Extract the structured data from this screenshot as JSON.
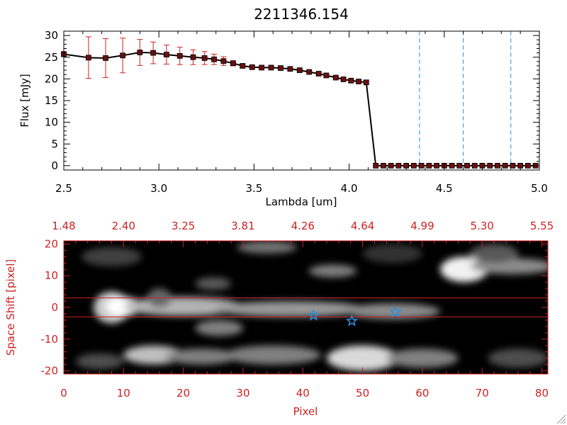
{
  "chart_data": [
    {
      "type": "line",
      "title": "2211346.154",
      "xlabel": "Lambda [um]",
      "ylabel": "Flux [mJy]",
      "xlim": [
        2.5,
        5.0
      ],
      "ylim": [
        -1,
        31
      ],
      "xticks": [
        "2.5",
        "3.0",
        "3.5",
        "4.0",
        "4.5",
        "5.0"
      ],
      "xtick_values": [
        2.5,
        3.0,
        3.5,
        4.0,
        4.5,
        5.0
      ],
      "yticks": [
        "0",
        "5",
        "10",
        "15",
        "20",
        "25",
        "30"
      ],
      "ytick_values": [
        0,
        5,
        10,
        15,
        20,
        25,
        30
      ],
      "series": [
        {
          "color": "#000000",
          "marker_color": "#6a1010",
          "errorbar_color": "#cc2222",
          "x": [
            2.5,
            2.63,
            2.72,
            2.81,
            2.9,
            2.97,
            3.04,
            3.11,
            3.18,
            3.24,
            3.29,
            3.34,
            3.39,
            3.44,
            3.49,
            3.54,
            3.59,
            3.64,
            3.69,
            3.74,
            3.79,
            3.84,
            3.88,
            3.93,
            3.97,
            4.01,
            4.05,
            4.09,
            4.14,
            4.18,
            4.22,
            4.26,
            4.3,
            4.34,
            4.38,
            4.42,
            4.46,
            4.5,
            4.54,
            4.58,
            4.62,
            4.66,
            4.7,
            4.74,
            4.78,
            4.82,
            4.86,
            4.9,
            4.94,
            4.98
          ],
          "y": [
            25.7,
            24.9,
            24.8,
            25.4,
            26.1,
            26.0,
            25.6,
            25.3,
            25.0,
            24.8,
            24.5,
            24.1,
            23.6,
            23.0,
            22.7,
            22.6,
            22.6,
            22.5,
            22.3,
            22.0,
            21.6,
            21.2,
            20.8,
            20.3,
            19.9,
            19.6,
            19.4,
            19.2,
            0.0,
            0.0,
            0.0,
            0.0,
            0.0,
            0.0,
            0.0,
            0.0,
            0.0,
            0.0,
            0.0,
            0.0,
            0.0,
            0.0,
            0.0,
            0.0,
            0.0,
            0.0,
            0.0,
            0.0,
            0.0,
            0.0
          ],
          "yerr": [
            0.6,
            4.8,
            4.5,
            4.0,
            3.0,
            2.5,
            2.2,
            2.0,
            1.7,
            1.5,
            1.2,
            1.0,
            0.6,
            0.4,
            0.3,
            0.3,
            0.3,
            0.3,
            0.3,
            0.3,
            0.3,
            0.3,
            0.3,
            0.3,
            0.3,
            0.3,
            0.3,
            0.3,
            0,
            0,
            0,
            0,
            0,
            0,
            0,
            0,
            0,
            0,
            0,
            0,
            0,
            0,
            0,
            0,
            0,
            0,
            0,
            0,
            0,
            0
          ]
        }
      ],
      "vertical_lines": {
        "x": [
          4.37,
          4.6,
          4.85
        ],
        "color": "#2a8fe0",
        "style": "dashed"
      }
    },
    {
      "type": "heatmap",
      "xlabel": "Pixel",
      "ylabel": "Space Shift [pixel]",
      "xlim": [
        0,
        81
      ],
      "ylim": [
        -21,
        21
      ],
      "xticks": [
        "0",
        "10",
        "20",
        "30",
        "40",
        "50",
        "60",
        "70",
        "80"
      ],
      "xtick_values": [
        0,
        10,
        20,
        30,
        40,
        50,
        60,
        70,
        80
      ],
      "yticks": [
        "-20",
        "-10",
        "0",
        "10",
        "20"
      ],
      "ytick_values": [
        -20,
        -10,
        0,
        10,
        20
      ],
      "top_axis_labels": [
        "1.48",
        "2.40",
        "3.25",
        "3.81",
        "4.26",
        "4.64",
        "4.99",
        "5.30",
        "5.55"
      ],
      "axis_color": "#cc2222",
      "horizontal_lines": {
        "y": [
          3,
          -3
        ],
        "color": "#cc2222"
      },
      "star_markers": {
        "x": [
          41.8,
          48.2,
          55.5
        ],
        "y": [
          -2.5,
          -4.3,
          -1.5
        ],
        "color": "#2a8fe0"
      },
      "blobs": [
        {
          "x": 8,
          "y": 0,
          "rx": 3,
          "ry": 5,
          "value": 0.8
        },
        {
          "x": 10,
          "y": 0.3,
          "rx": 3,
          "ry": 3,
          "value": 1.0
        },
        {
          "x": 20,
          "y": 0.3,
          "rx": 10,
          "ry": 3,
          "value": 0.7
        },
        {
          "x": 38,
          "y": -0.5,
          "rx": 13,
          "ry": 2.5,
          "value": 0.6
        },
        {
          "x": 55,
          "y": -1.2,
          "rx": 8,
          "ry": 2.5,
          "value": 0.55
        },
        {
          "x": 16,
          "y": 3,
          "rx": 2,
          "ry": 3,
          "value": 0.4
        },
        {
          "x": 26,
          "y": -6.5,
          "rx": 4,
          "ry": 2.5,
          "value": 0.5
        },
        {
          "x": 25,
          "y": 7.5,
          "rx": 3,
          "ry": 2,
          "value": 0.35
        },
        {
          "x": 34,
          "y": 19,
          "rx": 5,
          "ry": 2,
          "value": 0.45
        },
        {
          "x": 45,
          "y": 11.5,
          "rx": 4,
          "ry": 2,
          "value": 0.5
        },
        {
          "x": 67,
          "y": 12,
          "rx": 4,
          "ry": 4,
          "value": 0.95
        },
        {
          "x": 75,
          "y": 13,
          "rx": 7,
          "ry": 2.5,
          "value": 0.55
        },
        {
          "x": 72,
          "y": 17,
          "rx": 4,
          "ry": 3,
          "value": 0.35
        },
        {
          "x": 15,
          "y": -15,
          "rx": 5,
          "ry": 3,
          "value": 0.75
        },
        {
          "x": 23,
          "y": -15.5,
          "rx": 6,
          "ry": 2.5,
          "value": 0.5
        },
        {
          "x": 35,
          "y": -15,
          "rx": 8,
          "ry": 3,
          "value": 0.5
        },
        {
          "x": 50,
          "y": -16,
          "rx": 6,
          "ry": 4,
          "value": 0.85
        },
        {
          "x": 60,
          "y": -16,
          "rx": 6,
          "ry": 3,
          "value": 0.5
        },
        {
          "x": 6,
          "y": -17,
          "rx": 4,
          "ry": 2.5,
          "value": 0.3
        },
        {
          "x": 8,
          "y": 16,
          "rx": 5,
          "ry": 3,
          "value": 0.25
        },
        {
          "x": 76,
          "y": -16,
          "rx": 5,
          "ry": 3,
          "value": 0.3
        },
        {
          "x": 55,
          "y": 17,
          "rx": 5,
          "ry": 3,
          "value": 0.2
        }
      ]
    }
  ]
}
